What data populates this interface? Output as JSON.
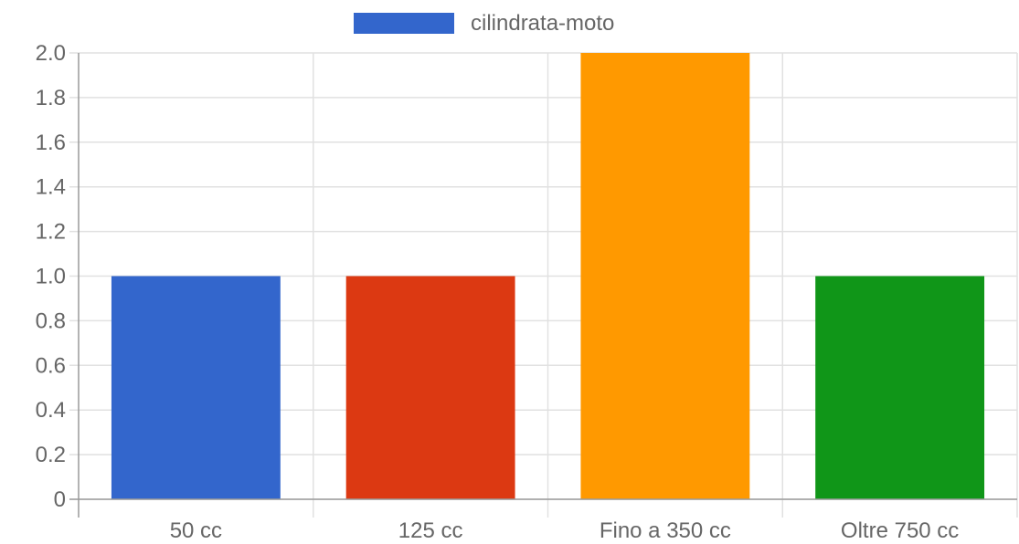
{
  "chart_data": {
    "type": "bar",
    "categories": [
      "50 cc",
      "125 cc",
      "Fino a 350 cc",
      "Oltre 750 cc"
    ],
    "series": [
      {
        "name": "cilindrata-moto",
        "values": [
          1,
          1,
          2,
          1
        ]
      }
    ],
    "bar_colors": [
      "#3366cc",
      "#dc3912",
      "#ff9900",
      "#109618"
    ],
    "legend_color": "#3366cc",
    "ylim": [
      0,
      2
    ],
    "yticks": [
      "0",
      "0.2",
      "0.4",
      "0.6",
      "0.8",
      "1.0",
      "1.2",
      "1.4",
      "1.6",
      "1.8",
      "2.0"
    ],
    "legend_position": "top",
    "grid": true,
    "title": "",
    "xlabel": "",
    "ylabel": ""
  }
}
